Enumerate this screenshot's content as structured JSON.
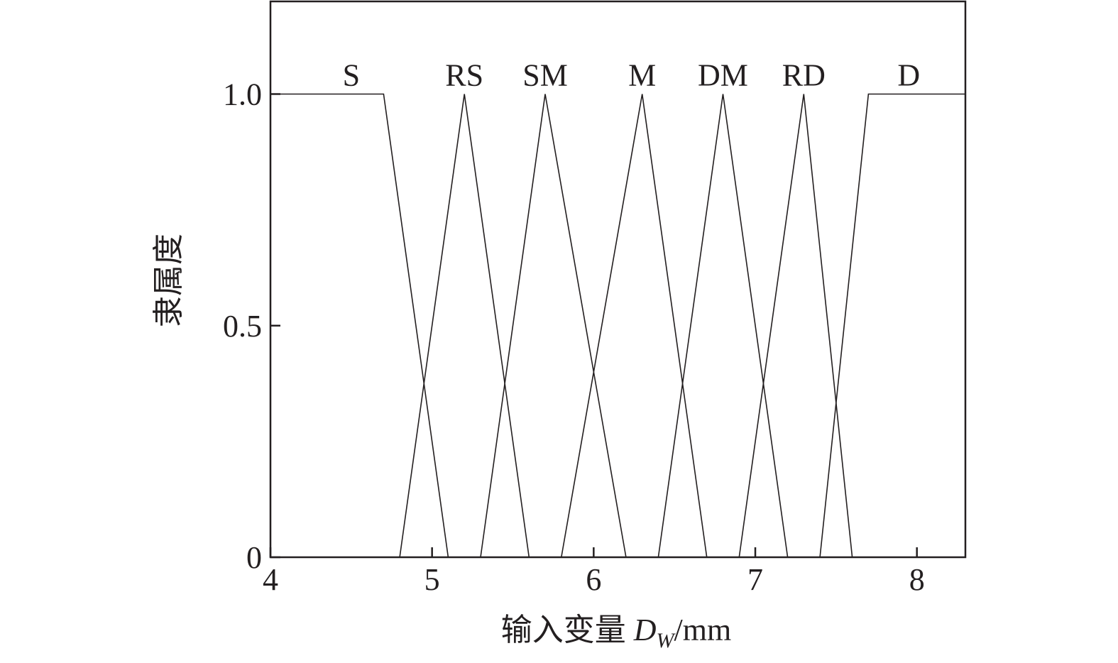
{
  "chart_data": {
    "type": "line",
    "title": "",
    "xlabel_main": "输入变量 ",
    "xlabel_symbol": "D",
    "xlabel_subscript": "W",
    "xlabel_unit": "/mm",
    "ylabel": "隶属度",
    "xlim": [
      4,
      8.3
    ],
    "ylim": [
      0,
      1.2
    ],
    "xticks": [
      4,
      5,
      6,
      7,
      8
    ],
    "xtick_labels": [
      "4",
      "5",
      "6",
      "7",
      "8"
    ],
    "yticks": [
      0,
      0.5,
      1.0
    ],
    "ytick_labels": [
      "0",
      "0.5",
      "1.0"
    ],
    "grid": false,
    "line_color": "#231f20",
    "series": [
      {
        "name": "S",
        "x": [
          4.0,
          4.7,
          5.1
        ],
        "y": [
          1,
          1,
          0
        ],
        "label_at": 4.5
      },
      {
        "name": "RS",
        "x": [
          4.8,
          5.2,
          5.6
        ],
        "y": [
          0,
          1,
          0
        ],
        "label_at": 5.2
      },
      {
        "name": "SM",
        "x": [
          5.3,
          5.7,
          6.2
        ],
        "y": [
          0,
          1,
          0
        ],
        "label_at": 5.7
      },
      {
        "name": "M",
        "x": [
          5.8,
          6.3,
          6.7
        ],
        "y": [
          0,
          1,
          0
        ],
        "label_at": 6.3
      },
      {
        "name": "DM",
        "x": [
          6.4,
          6.8,
          7.2
        ],
        "y": [
          0,
          1,
          0
        ],
        "label_at": 6.8
      },
      {
        "name": "RD",
        "x": [
          6.9,
          7.3,
          7.6
        ],
        "y": [
          0,
          1,
          0
        ],
        "label_at": 7.3
      },
      {
        "name": "D",
        "x": [
          7.4,
          7.7,
          8.3
        ],
        "y": [
          0,
          1,
          1
        ],
        "label_at": 7.95
      }
    ]
  }
}
